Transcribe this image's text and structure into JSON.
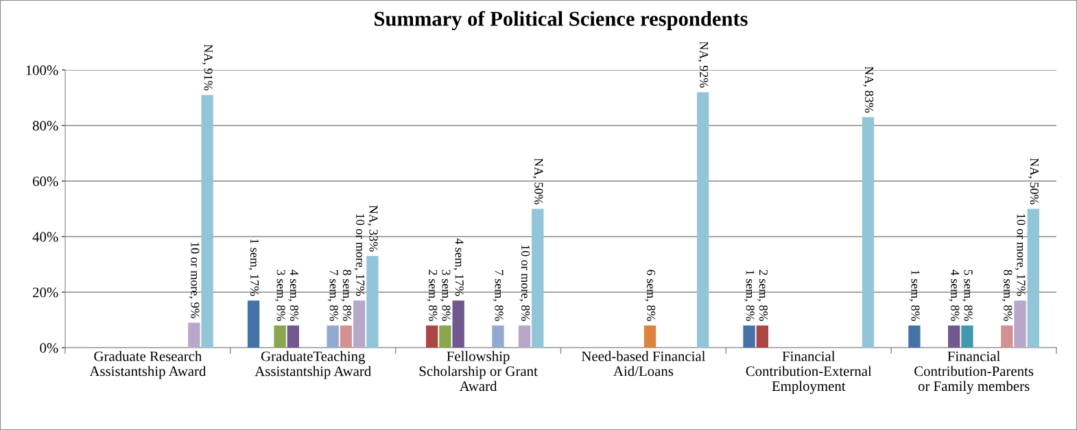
{
  "chart_data": {
    "type": "bar",
    "title": "Summary of Political Science respondents",
    "categories": [
      "Graduate Research\nAssistantship Award",
      "GraduateTeaching\nAssistantship Award",
      "Fellowship\nScholarship or Grant\nAward",
      "Need-based Financial\nAid/Loans",
      "Financial\nContribution-External\nEmployment",
      "Financial\nContribution-Parents\nor Family members"
    ],
    "series": [
      {
        "color": "#4572a7",
        "values": [
          0,
          17,
          0,
          0,
          8,
          8
        ],
        "value_labels": [
          null,
          "1 sem, 17%",
          null,
          null,
          "1 sem, 8%",
          "1 sem, 8%"
        ]
      },
      {
        "color": "#aa4643",
        "values": [
          0,
          0,
          8,
          0,
          8,
          0
        ],
        "value_labels": [
          null,
          null,
          "2 sem, 8%",
          null,
          "2 sem, 8%",
          null
        ]
      },
      {
        "color": "#89a54e",
        "values": [
          0,
          8,
          8,
          0,
          0,
          0
        ],
        "value_labels": [
          null,
          "3 sem, 8%",
          "3 sem, 8%",
          null,
          null,
          null
        ]
      },
      {
        "color": "#71588f",
        "values": [
          0,
          8,
          17,
          0,
          0,
          8
        ],
        "value_labels": [
          null,
          "4 sem, 8%",
          "4 sem, 17%",
          null,
          null,
          "4 sem, 8%"
        ]
      },
      {
        "color": "#4198af",
        "values": [
          0,
          0,
          0,
          0,
          0,
          8
        ],
        "value_labels": [
          null,
          null,
          null,
          null,
          null,
          "5 sem, 8%"
        ]
      },
      {
        "color": "#db843d",
        "values": [
          0,
          0,
          0,
          8,
          0,
          0
        ],
        "value_labels": [
          null,
          null,
          null,
          "6 sem, 8%",
          null,
          null
        ]
      },
      {
        "color": "#93a9cf",
        "values": [
          0,
          8,
          8,
          0,
          0,
          0
        ],
        "value_labels": [
          null,
          "7 sem, 8%",
          "7 sem, 8%",
          null,
          null,
          null
        ]
      },
      {
        "color": "#d19392",
        "values": [
          0,
          8,
          0,
          0,
          0,
          8
        ],
        "value_labels": [
          null,
          "8 sem, 8%",
          null,
          null,
          null,
          "8 sem, 8%"
        ]
      },
      {
        "color": "#b9a7c9",
        "values": [
          9,
          17,
          8,
          0,
          0,
          17
        ],
        "value_labels": [
          "10 or more, 9%",
          "10 or more, 17%",
          "10 or more, 8%",
          null,
          null,
          "10 or more, 17%"
        ]
      },
      {
        "color": "#92c5d8",
        "values": [
          91,
          33,
          50,
          92,
          83,
          50
        ],
        "value_labels": [
          "NA, 91%",
          "NA, 33%",
          "NA, 50%",
          "NA, 92%",
          "NA, 83%",
          "NA, 50%"
        ]
      }
    ],
    "ylim": [
      0,
      100
    ],
    "yticks": [
      {
        "value": 0,
        "label": "0%"
      },
      {
        "value": 20,
        "label": "20%"
      },
      {
        "value": 40,
        "label": "40%"
      },
      {
        "value": 60,
        "label": "60%"
      },
      {
        "value": 80,
        "label": "80%"
      },
      {
        "value": 100,
        "label": "100%"
      }
    ],
    "grid": "y"
  }
}
